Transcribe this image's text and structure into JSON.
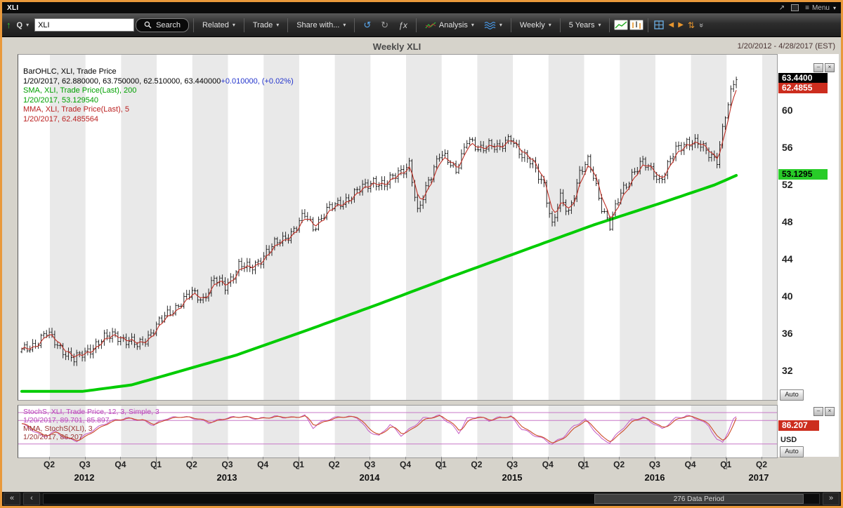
{
  "window": {
    "title": "XLI",
    "menu_label": "Menu"
  },
  "icons": {
    "caret_down": "▾",
    "undo": "↺",
    "redo": "↻",
    "function": "ƒx",
    "menu": "≡",
    "popout": "↗",
    "left": "◀",
    "right": "▶",
    "updown": "⇅",
    "chev_dbl_left": "«",
    "chev_dbl_right": "»",
    "chev_left": "‹",
    "close": "×",
    "minimize": "–",
    "up_green": "↑",
    "collapse": "»"
  },
  "toolbar": {
    "symbol_type": "Q",
    "symbol_value": "XLI",
    "search_label": "Search",
    "related_label": "Related",
    "trade_label": "Trade",
    "share_label": "Share with...",
    "analysis_label": "Analysis",
    "period_label": "Weekly",
    "range_label": "5 Years"
  },
  "chart_header": {
    "title": "Weekly XLI",
    "date_range": "1/20/2012 - 4/28/2017 (EST)"
  },
  "main_pane": {
    "legend": [
      {
        "text": "BarOHLC, XLI, Trade Price",
        "color": "#000000"
      },
      {
        "text": "1/20/2017, 62.880000, 63.750000, 62.510000, 63.440000",
        "color": "#000000",
        "suffix": "+0.010000, (+0.02%)",
        "suffix_color": "#2233cc"
      },
      {
        "text": "SMA, XLI, Trade Price(Last), 200",
        "color": "#00a000"
      },
      {
        "text": "1/20/2017, 53.129540",
        "color": "#00a000"
      },
      {
        "text": "MMA, XLI, Trade Price(Last), 5",
        "color": "#bb2222"
      },
      {
        "text": "1/20/2017, 62.485564",
        "color": "#bb2222"
      }
    ],
    "axis": {
      "labels": [
        60,
        56,
        52,
        48,
        44,
        40,
        36,
        32
      ],
      "callout_last": "63.4400",
      "callout_mma": "62.4855",
      "callout_sma": "53.1295",
      "auto_label": "Auto"
    }
  },
  "stoch_pane": {
    "legend": [
      {
        "text": "StochS, XLI, Trade Price, 12, 3, Simple, 3",
        "color": "#bb44bb"
      },
      {
        "text": "1/20/2017, 89.701, 85.897",
        "color": "#bb44bb"
      },
      {
        "text": "MMA, StochS(XLI), 3",
        "color": "#993333"
      },
      {
        "text": "1/20/2017, 86.207",
        "color": "#993333"
      }
    ],
    "axis": {
      "callout": "86.207",
      "currency": "USD",
      "auto_label": "Auto"
    }
  },
  "x_axis": {
    "quarters": [
      "Q2",
      "Q3",
      "Q4",
      "Q1",
      "Q2",
      "Q3",
      "Q4",
      "Q1",
      "Q2",
      "Q3",
      "Q4",
      "Q1",
      "Q2",
      "Q3",
      "Q4",
      "Q1",
      "Q2",
      "Q3",
      "Q4",
      "Q1",
      "Q2"
    ],
    "years": [
      "2012",
      "2013",
      "2014",
      "2015",
      "2016",
      "2017"
    ]
  },
  "scrollbar": {
    "label": "276 Data Period"
  },
  "chart_data": {
    "type": "ohlc+line",
    "x_range": {
      "start": "1/20/2012",
      "end": "4/28/2017",
      "bars": 276,
      "interval": "Weekly",
      "symbol": "XLI"
    },
    "panes": [
      {
        "name": "price",
        "ylim": [
          29,
          66
        ],
        "axis_ticks": [
          60,
          56,
          52,
          48,
          44,
          40,
          36,
          32
        ],
        "series": [
          {
            "name": "BarOHLC XLI Trade Price",
            "type": "ohlc",
            "color": "#151515",
            "last": {
              "date": "1/20/2017",
              "open": 62.88,
              "high": 63.75,
              "low": 62.51,
              "close": 63.44,
              "change": 0.01,
              "change_pct": "+0.02%"
            },
            "close_anchors": [
              [
                0,
                34.2
              ],
              [
                5,
                35.1
              ],
              [
                9,
                36.1
              ],
              [
                13,
                35.0
              ],
              [
                19,
                33.2
              ],
              [
                24,
                34.4
              ],
              [
                29,
                35.3
              ],
              [
                34,
                36.2
              ],
              [
                38,
                35.3
              ],
              [
                42,
                34.8
              ],
              [
                47,
                36.2
              ],
              [
                52,
                37.9
              ],
              [
                57,
                39.3
              ],
              [
                62,
                40.4
              ],
              [
                66,
                39.9
              ],
              [
                70,
                41.9
              ],
              [
                74,
                41.2
              ],
              [
                79,
                43.5
              ],
              [
                83,
                43.0
              ],
              [
                89,
                44.9
              ],
              [
                95,
                46.3
              ],
              [
                100,
                47.6
              ],
              [
                103,
                48.8
              ],
              [
                106,
                47.6
              ],
              [
                111,
                49.3
              ],
              [
                117,
                50.4
              ],
              [
                123,
                51.5
              ],
              [
                128,
                52.7
              ],
              [
                132,
                51.9
              ],
              [
                137,
                53.6
              ],
              [
                141,
                54.3
              ],
              [
                144,
                48.9
              ],
              [
                148,
                52.8
              ],
              [
                152,
                55.3
              ],
              [
                155,
                54.6
              ],
              [
                158,
                53.8
              ],
              [
                162,
                56.9
              ],
              [
                166,
                55.8
              ],
              [
                170,
                56.7
              ],
              [
                174,
                55.8
              ],
              [
                178,
                57.4
              ],
              [
                182,
                55.3
              ],
              [
                186,
                54.2
              ],
              [
                190,
                52.3
              ],
              [
                193,
                47.6
              ],
              [
                196,
                50.6
              ],
              [
                199,
                49.3
              ],
              [
                203,
                53.3
              ],
              [
                206,
                54.5
              ],
              [
                208,
                53.1
              ],
              [
                211,
                49.9
              ],
              [
                214,
                47.6
              ],
              [
                218,
                51.3
              ],
              [
                222,
                53.3
              ],
              [
                226,
                54.4
              ],
              [
                230,
                53.6
              ],
              [
                232,
                52.6
              ],
              [
                234,
                53.4
              ],
              [
                238,
                55.9
              ],
              [
                242,
                56.9
              ],
              [
                246,
                56.4
              ],
              [
                250,
                55.6
              ],
              [
                253,
                54.9
              ],
              [
                256,
                59.4
              ],
              [
                258,
                61.8
              ],
              [
                260,
                63.44
              ]
            ]
          },
          {
            "name": "SMA 200",
            "type": "line",
            "color": "#00cc00",
            "last_value": 53.12954,
            "anchors": [
              [
                0,
                29.9
              ],
              [
                22,
                29.9
              ],
              [
                40,
                30.6
              ],
              [
                52,
                31.6
              ],
              [
                78,
                33.8
              ],
              [
                104,
                36.5
              ],
              [
                130,
                39.3
              ],
              [
                156,
                42.2
              ],
              [
                182,
                45.0
              ],
              [
                208,
                47.8
              ],
              [
                234,
                50.3
              ],
              [
                252,
                52.1
              ],
              [
                260,
                53.13
              ]
            ]
          },
          {
            "name": "MMA 5",
            "type": "line",
            "color": "#bf2f25",
            "last_value": 62.485564,
            "derived_from": "close"
          }
        ]
      },
      {
        "name": "stochastics",
        "ylim": [
          0,
          100
        ],
        "levels": [
          80,
          20
        ],
        "series": [
          {
            "name": "StochS 12,3,Simple,3",
            "type": "line",
            "color": "#c45ac4",
            "last_values": [
              89.701,
              85.897
            ],
            "anchors": [
              [
                0,
                72
              ],
              [
                4,
                55
              ],
              [
                8,
                38
              ],
              [
                12,
                52
              ],
              [
                16,
                34
              ],
              [
                20,
                28
              ],
              [
                26,
                56
              ],
              [
                32,
                78
              ],
              [
                38,
                86
              ],
              [
                44,
                80
              ],
              [
                48,
                68
              ],
              [
                52,
                84
              ],
              [
                58,
                90
              ],
              [
                64,
                84
              ],
              [
                68,
                74
              ],
              [
                74,
                86
              ],
              [
                80,
                90
              ],
              [
                86,
                84
              ],
              [
                92,
                90
              ],
              [
                98,
                87
              ],
              [
                103,
                92
              ],
              [
                106,
                62
              ],
              [
                110,
                80
              ],
              [
                116,
                90
              ],
              [
                122,
                88
              ],
              [
                126,
                54
              ],
              [
                130,
                40
              ],
              [
                134,
                70
              ],
              [
                138,
                42
              ],
              [
                142,
                62
              ],
              [
                146,
                85
              ],
              [
                152,
                92
              ],
              [
                156,
                72
              ],
              [
                159,
                48
              ],
              [
                162,
                84
              ],
              [
                166,
                90
              ],
              [
                170,
                80
              ],
              [
                174,
                88
              ],
              [
                178,
                90
              ],
              [
                182,
                58
              ],
              [
                186,
                44
              ],
              [
                190,
                32
              ],
              [
                193,
                20
              ],
              [
                197,
                38
              ],
              [
                201,
                66
              ],
              [
                205,
                82
              ],
              [
                208,
                58
              ],
              [
                211,
                32
              ],
              [
                214,
                24
              ],
              [
                218,
                56
              ],
              [
                222,
                82
              ],
              [
                226,
                88
              ],
              [
                230,
                72
              ],
              [
                233,
                58
              ],
              [
                238,
                86
              ],
              [
                242,
                92
              ],
              [
                246,
                84
              ],
              [
                250,
                66
              ],
              [
                253,
                30
              ],
              [
                255,
                24
              ],
              [
                257,
                52
              ],
              [
                259,
                82
              ],
              [
                260,
                89.7
              ]
            ]
          },
          {
            "name": "MMA StochS 3",
            "type": "line",
            "color": "#cc4a28",
            "last_value": 86.207,
            "derived_from": "stoch"
          }
        ]
      }
    ]
  }
}
